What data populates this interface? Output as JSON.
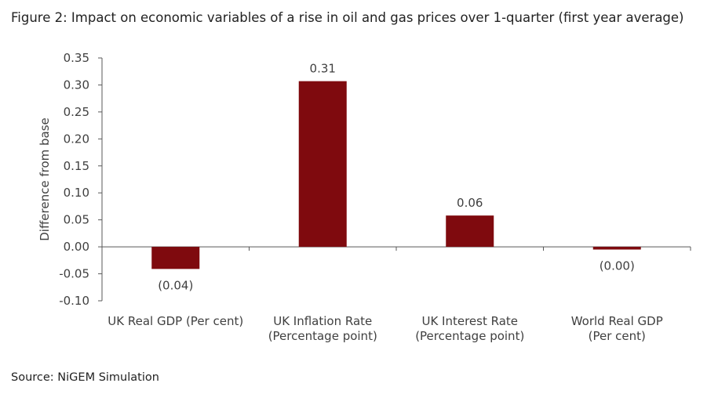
{
  "chart_data": {
    "type": "bar",
    "title": "Figure 2: Impact on economic variables of a rise in oil and gas prices over 1-quarter (first year average)",
    "xlabel": "",
    "ylabel": "Difference from base",
    "ylim": [
      -0.1,
      0.35
    ],
    "yticks": [
      "0.35",
      "0.30",
      "0.25",
      "0.20",
      "0.15",
      "0.10",
      "0.05",
      "0.00",
      "-0.05",
      "-0.10"
    ],
    "grid": false,
    "categories": [
      [
        "UK Real GDP (Per cent)"
      ],
      [
        "UK Inflation Rate",
        "(Percentage point)"
      ],
      [
        "UK Interest Rate",
        "(Percentage point)"
      ],
      [
        "World Real GDP",
        "(Per cent)"
      ]
    ],
    "values": [
      -0.041,
      0.307,
      0.058,
      -0.005
    ],
    "data_labels": [
      "(0.04)",
      "0.31",
      "0.06",
      "(0.00)"
    ],
    "bar_color": "#7f0a0e",
    "source": "Source: NiGEM Simulation"
  }
}
